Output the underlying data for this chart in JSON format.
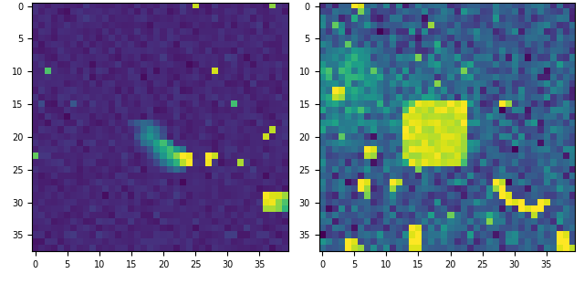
{
  "grid_rows": 38,
  "grid_cols": 40,
  "cmap": "viridis",
  "figsize": [
    6.4,
    3.11
  ],
  "dpi": 100,
  "tick_fontsize": 7,
  "xtick_interval": 5,
  "ytick_interval": 5,
  "left_data": [
    [
      0.1,
      0.12,
      0.08,
      0.11,
      0.13,
      0.09,
      0.1,
      0.12,
      0.14,
      0.1,
      0.11,
      0.09,
      0.08,
      0.12,
      0.1,
      0.11,
      0.13,
      0.09,
      0.1,
      0.12,
      0.1,
      0.09,
      0.11,
      0.13,
      0.1,
      0.95,
      0.09,
      0.11,
      0.13,
      0.1,
      0.11,
      0.09,
      0.12,
      0.1,
      0.13,
      0.11,
      0.09,
      0.8,
      0.1,
      0.11
    ],
    [
      0.12,
      0.09,
      0.11,
      0.13,
      0.1,
      0.08,
      0.12,
      0.1,
      0.11,
      0.13,
      0.09,
      0.1,
      0.12,
      0.11,
      0.09,
      0.13,
      0.1,
      0.12,
      0.08,
      0.11,
      0.13,
      0.1,
      0.09,
      0.12,
      0.11,
      0.1,
      0.13,
      0.09,
      0.11,
      0.12,
      0.1,
      0.13,
      0.09,
      0.11,
      0.12,
      0.1,
      0.08,
      0.11,
      0.13,
      0.1
    ],
    [
      0.09,
      0.11,
      0.13,
      0.1,
      0.12,
      0.08,
      0.09,
      0.11,
      0.14,
      0.12,
      0.1,
      0.13,
      0.09,
      0.11,
      0.12,
      0.1,
      0.09,
      0.13,
      0.11,
      0.1,
      0.12,
      0.09,
      0.11,
      0.13,
      0.1,
      0.12,
      0.09,
      0.11,
      0.13,
      0.1,
      0.12,
      0.09,
      0.11,
      0.13,
      0.1,
      0.12,
      0.09,
      0.11,
      0.14,
      0.1
    ],
    [
      0.13,
      0.1,
      0.12,
      0.09,
      0.11,
      0.13,
      0.1,
      0.12,
      0.09,
      0.11,
      0.13,
      0.1,
      0.12,
      0.09,
      0.11,
      0.13,
      0.1,
      0.12,
      0.09,
      0.11,
      0.13,
      0.1,
      0.12,
      0.09,
      0.11,
      0.13,
      0.1,
      0.12,
      0.09,
      0.11,
      0.13,
      0.1,
      0.12,
      0.09,
      0.11,
      0.13,
      0.1,
      0.12,
      0.09,
      0.11
    ],
    [
      0.1,
      0.13,
      0.09,
      0.11,
      0.12,
      0.1,
      0.13,
      0.09,
      0.11,
      0.12,
      0.1,
      0.13,
      0.09,
      0.11,
      0.12,
      0.1,
      0.13,
      0.09,
      0.11,
      0.12,
      0.1,
      0.13,
      0.09,
      0.11,
      0.12,
      0.1,
      0.13,
      0.09,
      0.11,
      0.12,
      0.1,
      0.13,
      0.09,
      0.11,
      0.12,
      0.1,
      0.13,
      0.09,
      0.11,
      0.12
    ],
    [
      0.11,
      0.09,
      0.13,
      0.1,
      0.12,
      0.09,
      0.11,
      0.13,
      0.1,
      0.12,
      0.09,
      0.11,
      0.13,
      0.1,
      0.12,
      0.09,
      0.11,
      0.13,
      0.1,
      0.12,
      0.09,
      0.11,
      0.13,
      0.1,
      0.12,
      0.09,
      0.11,
      0.13,
      0.1,
      0.12,
      0.09,
      0.11,
      0.13,
      0.1,
      0.12,
      0.09,
      0.11,
      0.13,
      0.1,
      0.12
    ],
    [
      0.12,
      0.1,
      0.09,
      0.13,
      0.11,
      0.12,
      0.1,
      0.09,
      0.13,
      0.11,
      0.12,
      0.1,
      0.09,
      0.13,
      0.11,
      0.12,
      0.1,
      0.09,
      0.13,
      0.11,
      0.12,
      0.1,
      0.09,
      0.13,
      0.11,
      0.12,
      0.1,
      0.09,
      0.13,
      0.11,
      0.12,
      0.1,
      0.09,
      0.13,
      0.11,
      0.12,
      0.1,
      0.09,
      0.13,
      0.11
    ],
    [
      0.09,
      0.11,
      0.12,
      0.1,
      0.13,
      0.11,
      0.09,
      0.12,
      0.1,
      0.13,
      0.11,
      0.09,
      0.12,
      0.1,
      0.13,
      0.11,
      0.09,
      0.12,
      0.1,
      0.13,
      0.11,
      0.09,
      0.12,
      0.1,
      0.13,
      0.11,
      0.09,
      0.12,
      0.1,
      0.13,
      0.11,
      0.09,
      0.12,
      0.1,
      0.13,
      0.11,
      0.09,
      0.12,
      0.1,
      0.13
    ],
    [
      0.13,
      0.12,
      0.1,
      0.09,
      0.11,
      0.13,
      0.12,
      0.1,
      0.09,
      0.11,
      0.13,
      0.12,
      0.1,
      0.09,
      0.11,
      0.13,
      0.12,
      0.1,
      0.09,
      0.11,
      0.13,
      0.12,
      0.1,
      0.09,
      0.11,
      0.13,
      0.12,
      0.1,
      0.09,
      0.11,
      0.13,
      0.12,
      0.1,
      0.09,
      0.11,
      0.13,
      0.12,
      0.1,
      0.09,
      0.11
    ],
    [
      0.1,
      0.13,
      0.11,
      0.12,
      0.09,
      0.1,
      0.13,
      0.11,
      0.12,
      0.09,
      0.1,
      0.13,
      0.11,
      0.12,
      0.09,
      0.1,
      0.13,
      0.11,
      0.12,
      0.09,
      0.1,
      0.13,
      0.11,
      0.12,
      0.09,
      0.1,
      0.13,
      0.11,
      0.12,
      0.09,
      0.1,
      0.13,
      0.11,
      0.12,
      0.09,
      0.1,
      0.13,
      0.11,
      0.12,
      0.09
    ],
    [
      0.11,
      0.09,
      0.75,
      0.12,
      0.1,
      0.13,
      0.11,
      0.09,
      0.12,
      0.1,
      0.13,
      0.11,
      0.09,
      0.12,
      0.1,
      0.13,
      0.11,
      0.09,
      0.12,
      0.1,
      0.13,
      0.11,
      0.09,
      0.12,
      0.1,
      0.13,
      0.11,
      0.09,
      0.95,
      0.1,
      0.13,
      0.11,
      0.09,
      0.12,
      0.1,
      0.13,
      0.11,
      0.09,
      0.12,
      0.1
    ],
    [
      0.12,
      0.1,
      0.09,
      0.13,
      0.11,
      0.12,
      0.1,
      0.09,
      0.13,
      0.11,
      0.12,
      0.1,
      0.09,
      0.13,
      0.11,
      0.12,
      0.1,
      0.09,
      0.13,
      0.11,
      0.12,
      0.1,
      0.09,
      0.13,
      0.11,
      0.12,
      0.1,
      0.09,
      0.13,
      0.11,
      0.12,
      0.1,
      0.09,
      0.13,
      0.11,
      0.12,
      0.1,
      0.09,
      0.13,
      0.11
    ],
    [
      0.09,
      0.11,
      0.12,
      0.1,
      0.13,
      0.09,
      0.11,
      0.12,
      0.1,
      0.13,
      0.09,
      0.11,
      0.12,
      0.1,
      0.13,
      0.09,
      0.11,
      0.12,
      0.1,
      0.13,
      0.09,
      0.11,
      0.12,
      0.1,
      0.13,
      0.09,
      0.11,
      0.12,
      0.1,
      0.13,
      0.09,
      0.11,
      0.12,
      0.1,
      0.13,
      0.09,
      0.11,
      0.12,
      0.1,
      0.13
    ],
    [
      0.1,
      0.12,
      0.13,
      0.09,
      0.11,
      0.1,
      0.12,
      0.13,
      0.09,
      0.11,
      0.1,
      0.12,
      0.13,
      0.09,
      0.11,
      0.1,
      0.12,
      0.13,
      0.09,
      0.11,
      0.1,
      0.12,
      0.13,
      0.09,
      0.11,
      0.1,
      0.12,
      0.13,
      0.09,
      0.11,
      0.1,
      0.12,
      0.13,
      0.09,
      0.11,
      0.1,
      0.12,
      0.13,
      0.09,
      0.11
    ],
    [
      0.13,
      0.09,
      0.11,
      0.12,
      0.1,
      0.13,
      0.09,
      0.11,
      0.12,
      0.1,
      0.13,
      0.09,
      0.11,
      0.12,
      0.1,
      0.13,
      0.09,
      0.11,
      0.12,
      0.1,
      0.13,
      0.09,
      0.11,
      0.12,
      0.1,
      0.13,
      0.09,
      0.11,
      0.12,
      0.1,
      0.13,
      0.09,
      0.11,
      0.12,
      0.1,
      0.13,
      0.09,
      0.11,
      0.12,
      0.1
    ],
    [
      0.11,
      0.25,
      0.1,
      0.09,
      0.13,
      0.11,
      0.25,
      0.1,
      0.09,
      0.13,
      0.11,
      0.1,
      0.09,
      0.13,
      0.11,
      0.1,
      0.09,
      0.13,
      0.11,
      0.1,
      0.09,
      0.13,
      0.11,
      0.1,
      0.09,
      0.13,
      0.11,
      0.1,
      0.09,
      0.13,
      0.11,
      0.7,
      0.09,
      0.13,
      0.11,
      0.1,
      0.09,
      0.13,
      0.11,
      0.1
    ],
    [
      0.09,
      0.13,
      0.11,
      0.1,
      0.09,
      0.13,
      0.11,
      0.1,
      0.09,
      0.13,
      0.11,
      0.1,
      0.09,
      0.13,
      0.11,
      0.1,
      0.09,
      0.13,
      0.11,
      0.1,
      0.09,
      0.13,
      0.11,
      0.1,
      0.09,
      0.13,
      0.11,
      0.1,
      0.09,
      0.13,
      0.11,
      0.1,
      0.09,
      0.13,
      0.11,
      0.1,
      0.09,
      0.13,
      0.11,
      0.1
    ],
    [
      0.1,
      0.09,
      0.13,
      0.11,
      0.1,
      0.09,
      0.13,
      0.11,
      0.1,
      0.09,
      0.13,
      0.11,
      0.1,
      0.09,
      0.13,
      0.11,
      0.1,
      0.09,
      0.13,
      0.11,
      0.1,
      0.09,
      0.13,
      0.11,
      0.1,
      0.09,
      0.13,
      0.11,
      0.1,
      0.09,
      0.13,
      0.11,
      0.1,
      0.09,
      0.13,
      0.11,
      0.1,
      0.09,
      0.13,
      0.11
    ],
    [
      0.12,
      0.11,
      0.09,
      0.13,
      0.12,
      0.11,
      0.09,
      0.13,
      0.12,
      0.11,
      0.09,
      0.13,
      0.12,
      0.11,
      0.09,
      0.2,
      0.3,
      0.35,
      0.3,
      0.2,
      0.12,
      0.11,
      0.09,
      0.13,
      0.12,
      0.11,
      0.09,
      0.13,
      0.12,
      0.11,
      0.09,
      0.13,
      0.12,
      0.11,
      0.09,
      0.13,
      0.12,
      0.11,
      0.09,
      0.13
    ],
    [
      0.09,
      0.13,
      0.12,
      0.11,
      0.09,
      0.13,
      0.12,
      0.11,
      0.09,
      0.13,
      0.12,
      0.11,
      0.09,
      0.13,
      0.12,
      0.11,
      0.2,
      0.35,
      0.45,
      0.35,
      0.22,
      0.13,
      0.12,
      0.11,
      0.09,
      0.13,
      0.12,
      0.11,
      0.09,
      0.13,
      0.12,
      0.11,
      0.09,
      0.13,
      0.12,
      0.11,
      0.09,
      0.9,
      0.13,
      0.12
    ],
    [
      0.11,
      0.1,
      0.13,
      0.12,
      0.11,
      0.1,
      0.13,
      0.12,
      0.11,
      0.1,
      0.13,
      0.12,
      0.11,
      0.1,
      0.13,
      0.12,
      0.25,
      0.4,
      0.5,
      0.42,
      0.25,
      0.1,
      0.13,
      0.12,
      0.11,
      0.1,
      0.13,
      0.12,
      0.11,
      0.1,
      0.13,
      0.12,
      0.11,
      0.1,
      0.13,
      0.12,
      0.9,
      0.1,
      0.13,
      0.12
    ],
    [
      0.13,
      0.12,
      0.11,
      0.1,
      0.13,
      0.12,
      0.11,
      0.1,
      0.13,
      0.12,
      0.11,
      0.1,
      0.13,
      0.12,
      0.11,
      0.12,
      0.22,
      0.35,
      0.42,
      0.55,
      0.65,
      0.45,
      0.13,
      0.12,
      0.11,
      0.1,
      0.13,
      0.12,
      0.11,
      0.1,
      0.13,
      0.12,
      0.11,
      0.1,
      0.13,
      0.12,
      0.11,
      0.1,
      0.13,
      0.12
    ],
    [
      0.1,
      0.11,
      0.12,
      0.13,
      0.1,
      0.11,
      0.12,
      0.13,
      0.1,
      0.11,
      0.12,
      0.13,
      0.1,
      0.11,
      0.12,
      0.1,
      0.12,
      0.2,
      0.3,
      0.45,
      0.6,
      0.7,
      0.55,
      0.4,
      0.1,
      0.11,
      0.12,
      0.13,
      0.1,
      0.11,
      0.12,
      0.13,
      0.1,
      0.11,
      0.12,
      0.13,
      0.1,
      0.11,
      0.12,
      0.13
    ],
    [
      0.75,
      0.12,
      0.13,
      0.1,
      0.11,
      0.12,
      0.13,
      0.1,
      0.11,
      0.12,
      0.13,
      0.1,
      0.11,
      0.12,
      0.13,
      0.1,
      0.09,
      0.13,
      0.22,
      0.35,
      0.5,
      0.65,
      0.8,
      1.0,
      0.95,
      0.1,
      0.12,
      1.0,
      0.95,
      0.09,
      0.11,
      0.12,
      0.13,
      0.1,
      0.11,
      0.12,
      0.13,
      0.1,
      0.11,
      0.12
    ],
    [
      0.09,
      0.1,
      0.11,
      0.12,
      0.13,
      0.09,
      0.1,
      0.11,
      0.12,
      0.13,
      0.09,
      0.1,
      0.11,
      0.12,
      0.13,
      0.09,
      0.1,
      0.11,
      0.12,
      0.2,
      0.35,
      0.5,
      0.65,
      0.9,
      1.0,
      0.09,
      0.1,
      0.95,
      0.13,
      0.09,
      0.1,
      0.11,
      0.85,
      0.13,
      0.09,
      0.1,
      0.11,
      0.12,
      0.13,
      0.09
    ],
    [
      0.12,
      0.13,
      0.09,
      0.1,
      0.11,
      0.12,
      0.13,
      0.09,
      0.1,
      0.11,
      0.12,
      0.13,
      0.09,
      0.1,
      0.11,
      0.12,
      0.13,
      0.09,
      0.1,
      0.11,
      0.2,
      0.3,
      0.35,
      0.28,
      0.1,
      0.09,
      0.1,
      0.11,
      0.12,
      0.13,
      0.09,
      0.1,
      0.11,
      0.12,
      0.13,
      0.09,
      0.1,
      0.11,
      0.12,
      0.13
    ],
    [
      0.11,
      0.09,
      0.1,
      0.13,
      0.12,
      0.11,
      0.09,
      0.1,
      0.13,
      0.12,
      0.11,
      0.09,
      0.1,
      0.13,
      0.12,
      0.11,
      0.09,
      0.1,
      0.13,
      0.12,
      0.11,
      0.09,
      0.1,
      0.13,
      0.12,
      0.11,
      0.09,
      0.1,
      0.13,
      0.12,
      0.11,
      0.09,
      0.1,
      0.13,
      0.12,
      0.11,
      0.09,
      0.1,
      0.13,
      0.12
    ],
    [
      0.13,
      0.12,
      0.11,
      0.09,
      0.1,
      0.13,
      0.12,
      0.11,
      0.09,
      0.1,
      0.13,
      0.12,
      0.11,
      0.09,
      0.1,
      0.13,
      0.12,
      0.11,
      0.09,
      0.1,
      0.13,
      0.12,
      0.11,
      0.09,
      0.1,
      0.13,
      0.12,
      0.11,
      0.09,
      0.1,
      0.13,
      0.12,
      0.11,
      0.09,
      0.1,
      0.13,
      0.12,
      0.11,
      0.09,
      0.1
    ],
    [
      0.1,
      0.11,
      0.12,
      0.13,
      0.09,
      0.1,
      0.11,
      0.12,
      0.13,
      0.09,
      0.1,
      0.11,
      0.12,
      0.13,
      0.09,
      0.1,
      0.11,
      0.12,
      0.13,
      0.09,
      0.1,
      0.11,
      0.12,
      0.13,
      0.09,
      0.1,
      0.11,
      0.12,
      0.13,
      0.09,
      0.1,
      0.11,
      0.12,
      0.13,
      0.09,
      0.1,
      0.11,
      0.12,
      0.13,
      0.09
    ],
    [
      0.09,
      0.1,
      0.13,
      0.11,
      0.12,
      0.09,
      0.1,
      0.13,
      0.11,
      0.12,
      0.09,
      0.1,
      0.13,
      0.11,
      0.12,
      0.09,
      0.1,
      0.13,
      0.11,
      0.12,
      0.09,
      0.1,
      0.13,
      0.11,
      0.12,
      0.09,
      0.1,
      0.13,
      0.11,
      0.12,
      0.09,
      0.1,
      0.13,
      0.11,
      0.12,
      0.09,
      1.0,
      0.95,
      0.9,
      0.85
    ],
    [
      0.12,
      0.13,
      0.11,
      0.09,
      0.1,
      0.12,
      0.13,
      0.11,
      0.09,
      0.1,
      0.12,
      0.13,
      0.11,
      0.09,
      0.1,
      0.12,
      0.13,
      0.11,
      0.09,
      0.1,
      0.12,
      0.13,
      0.11,
      0.09,
      0.1,
      0.12,
      0.13,
      0.11,
      0.09,
      0.1,
      0.12,
      0.13,
      0.11,
      0.09,
      0.1,
      0.12,
      0.95,
      1.0,
      0.8,
      0.7
    ],
    [
      0.11,
      0.09,
      0.1,
      0.12,
      0.13,
      0.11,
      0.09,
      0.1,
      0.12,
      0.13,
      0.11,
      0.09,
      0.1,
      0.12,
      0.13,
      0.11,
      0.09,
      0.1,
      0.12,
      0.13,
      0.11,
      0.09,
      0.1,
      0.12,
      0.13,
      0.11,
      0.09,
      0.1,
      0.12,
      0.13,
      0.11,
      0.09,
      0.1,
      0.12,
      0.13,
      0.11,
      0.85,
      0.9,
      0.8,
      0.65
    ],
    [
      0.1,
      0.12,
      0.09,
      0.11,
      0.13,
      0.1,
      0.12,
      0.09,
      0.11,
      0.13,
      0.1,
      0.12,
      0.09,
      0.11,
      0.13,
      0.1,
      0.12,
      0.09,
      0.11,
      0.13,
      0.1,
      0.12,
      0.09,
      0.11,
      0.13,
      0.1,
      0.12,
      0.09,
      0.11,
      0.13,
      0.1,
      0.12,
      0.09,
      0.11,
      0.13,
      0.1,
      0.12,
      0.09,
      0.11,
      0.13
    ],
    [
      0.13,
      0.11,
      0.12,
      0.1,
      0.09,
      0.13,
      0.11,
      0.12,
      0.1,
      0.09,
      0.13,
      0.11,
      0.12,
      0.1,
      0.09,
      0.13,
      0.11,
      0.12,
      0.1,
      0.09,
      0.13,
      0.11,
      0.12,
      0.1,
      0.09,
      0.13,
      0.11,
      0.12,
      0.1,
      0.09,
      0.13,
      0.11,
      0.12,
      0.1,
      0.09,
      0.13,
      0.11,
      0.12,
      0.1,
      0.09
    ],
    [
      0.09,
      0.1,
      0.11,
      0.13,
      0.12,
      0.09,
      0.1,
      0.11,
      0.13,
      0.12,
      0.09,
      0.1,
      0.11,
      0.13,
      0.12,
      0.09,
      0.1,
      0.11,
      0.13,
      0.12,
      0.09,
      0.1,
      0.11,
      0.13,
      0.12,
      0.09,
      0.1,
      0.11,
      0.13,
      0.12,
      0.09,
      0.1,
      0.11,
      0.13,
      0.12,
      0.09,
      0.1,
      0.11,
      0.13,
      0.12
    ],
    [
      0.12,
      0.13,
      0.1,
      0.09,
      0.11,
      0.12,
      0.13,
      0.1,
      0.09,
      0.11,
      0.12,
      0.13,
      0.1,
      0.09,
      0.11,
      0.12,
      0.13,
      0.1,
      0.09,
      0.11,
      0.12,
      0.13,
      0.1,
      0.09,
      0.11,
      0.12,
      0.13,
      0.1,
      0.09,
      0.11,
      0.12,
      0.13,
      0.1,
      0.09,
      0.11,
      0.12,
      0.13,
      0.1,
      0.09,
      0.11
    ],
    [
      0.11,
      0.09,
      0.13,
      0.12,
      0.1,
      0.11,
      0.09,
      0.13,
      0.12,
      0.1,
      0.11,
      0.09,
      0.13,
      0.12,
      0.1,
      0.11,
      0.09,
      0.13,
      0.12,
      0.1,
      0.11,
      0.09,
      0.13,
      0.12,
      0.1,
      0.11,
      0.09,
      0.13,
      0.12,
      0.1,
      0.11,
      0.09,
      0.13,
      0.12,
      0.1,
      0.11,
      0.09,
      0.13,
      0.12,
      0.1
    ],
    [
      0.1,
      0.12,
      0.09,
      0.11,
      0.13,
      0.1,
      0.12,
      0.09,
      0.11,
      0.13,
      0.1,
      0.12,
      0.09,
      0.11,
      0.13,
      0.1,
      0.12,
      0.09,
      0.11,
      0.13,
      0.1,
      0.12,
      0.09,
      0.11,
      0.13,
      0.1,
      0.12,
      0.09,
      0.11,
      0.13,
      0.1,
      0.12,
      0.09,
      0.11,
      0.13,
      0.1,
      0.12,
      0.09,
      0.11,
      0.13
    ]
  ]
}
